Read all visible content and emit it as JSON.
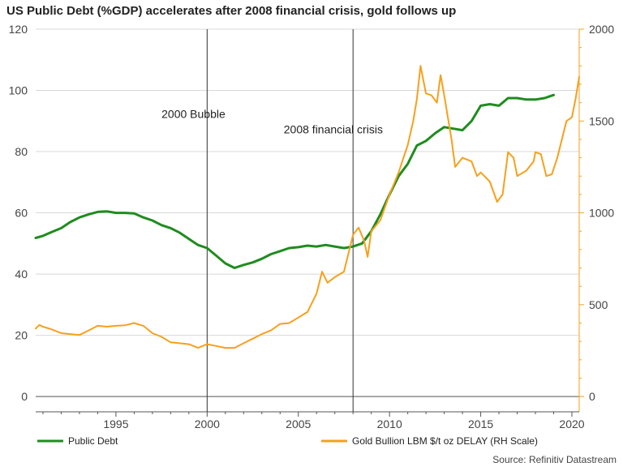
{
  "chart_data": {
    "type": "line",
    "title": "US Public Debt (%GDP) accelerates after 2008 financial crisis, gold follows up",
    "source": "Source: Refinitiv Datastream",
    "xlim": [
      1990.6,
      2020.4
    ],
    "x_ticks": [
      1995,
      2000,
      2005,
      2010,
      2015,
      2020
    ],
    "y_left": {
      "ylim": [
        -5,
        120
      ],
      "ticks": [
        0,
        20,
        40,
        60,
        80,
        100,
        120
      ]
    },
    "y_right": {
      "ylim": [
        -83.33,
        2000
      ],
      "ticks": [
        0,
        500,
        1000,
        1500,
        2000
      ]
    },
    "grid": true,
    "annotations": [
      {
        "label": "2000 Bubble",
        "x": 2000.0,
        "label_x": 1997.5,
        "label_y": 91
      },
      {
        "label": "2008 financial crisis",
        "x": 2008.0,
        "label_x": 2004.2,
        "label_y": 86
      }
    ],
    "series": [
      {
        "name": "Public Debt",
        "axis": "left",
        "color": "#1e8c1e",
        "points": [
          [
            1990.6,
            51.8
          ],
          [
            1991.0,
            52.5
          ],
          [
            1991.5,
            53.8
          ],
          [
            1992.0,
            55.0
          ],
          [
            1992.5,
            57.0
          ],
          [
            1993.0,
            58.5
          ],
          [
            1993.5,
            59.5
          ],
          [
            1994.0,
            60.3
          ],
          [
            1994.5,
            60.5
          ],
          [
            1995.0,
            60.0
          ],
          [
            1995.5,
            60.0
          ],
          [
            1996.0,
            59.8
          ],
          [
            1996.5,
            58.5
          ],
          [
            1997.0,
            57.5
          ],
          [
            1997.5,
            56.0
          ],
          [
            1998.0,
            55.0
          ],
          [
            1998.5,
            53.5
          ],
          [
            1999.0,
            51.5
          ],
          [
            1999.5,
            49.5
          ],
          [
            2000.0,
            48.5
          ],
          [
            2000.5,
            46.0
          ],
          [
            2001.0,
            43.5
          ],
          [
            2001.5,
            42.0
          ],
          [
            2002.0,
            43.0
          ],
          [
            2002.5,
            43.8
          ],
          [
            2003.0,
            45.0
          ],
          [
            2003.5,
            46.5
          ],
          [
            2004.0,
            47.5
          ],
          [
            2004.5,
            48.5
          ],
          [
            2005.0,
            48.8
          ],
          [
            2005.5,
            49.3
          ],
          [
            2006.0,
            49.0
          ],
          [
            2006.5,
            49.5
          ],
          [
            2007.0,
            49.0
          ],
          [
            2007.5,
            48.5
          ],
          [
            2008.0,
            49.0
          ],
          [
            2008.5,
            50.0
          ],
          [
            2009.0,
            54.0
          ],
          [
            2009.5,
            59.5
          ],
          [
            2010.0,
            66.0
          ],
          [
            2010.5,
            72.0
          ],
          [
            2011.0,
            76.0
          ],
          [
            2011.5,
            82.0
          ],
          [
            2012.0,
            83.5
          ],
          [
            2012.5,
            86.0
          ],
          [
            2013.0,
            88.0
          ],
          [
            2013.5,
            87.5
          ],
          [
            2014.0,
            87.0
          ],
          [
            2014.5,
            90.0
          ],
          [
            2015.0,
            95.0
          ],
          [
            2015.5,
            95.5
          ],
          [
            2016.0,
            95.0
          ],
          [
            2016.5,
            97.5
          ],
          [
            2017.0,
            97.5
          ],
          [
            2017.5,
            97.0
          ],
          [
            2018.0,
            97.0
          ],
          [
            2018.5,
            97.5
          ],
          [
            2019.0,
            98.5
          ]
        ]
      },
      {
        "name": "Gold Bullion LBM $/t oz DELAY (RH Scale)",
        "axis": "right",
        "color": "#f7a01c",
        "points": [
          [
            1990.6,
            370
          ],
          [
            1990.8,
            390
          ],
          [
            1991.0,
            380
          ],
          [
            1991.5,
            365
          ],
          [
            1992.0,
            345
          ],
          [
            1992.5,
            340
          ],
          [
            1993.0,
            335
          ],
          [
            1993.5,
            360
          ],
          [
            1994.0,
            385
          ],
          [
            1994.5,
            380
          ],
          [
            1995.0,
            385
          ],
          [
            1995.5,
            388
          ],
          [
            1996.0,
            400
          ],
          [
            1996.5,
            385
          ],
          [
            1997.0,
            345
          ],
          [
            1997.5,
            325
          ],
          [
            1998.0,
            295
          ],
          [
            1998.5,
            290
          ],
          [
            1999.0,
            285
          ],
          [
            1999.5,
            265
          ],
          [
            2000.0,
            285
          ],
          [
            2000.5,
            275
          ],
          [
            2001.0,
            265
          ],
          [
            2001.5,
            265
          ],
          [
            2002.0,
            290
          ],
          [
            2002.5,
            315
          ],
          [
            2003.0,
            340
          ],
          [
            2003.5,
            360
          ],
          [
            2004.0,
            395
          ],
          [
            2004.5,
            400
          ],
          [
            2005.0,
            430
          ],
          [
            2005.5,
            460
          ],
          [
            2006.0,
            560
          ],
          [
            2006.3,
            680
          ],
          [
            2006.6,
            620
          ],
          [
            2007.0,
            650
          ],
          [
            2007.5,
            680
          ],
          [
            2008.0,
            880
          ],
          [
            2008.3,
            920
          ],
          [
            2008.6,
            850
          ],
          [
            2008.8,
            760
          ],
          [
            2009.0,
            900
          ],
          [
            2009.5,
            960
          ],
          [
            2010.0,
            1100
          ],
          [
            2010.5,
            1220
          ],
          [
            2011.0,
            1370
          ],
          [
            2011.3,
            1500
          ],
          [
            2011.5,
            1620
          ],
          [
            2011.7,
            1800
          ],
          [
            2012.0,
            1650
          ],
          [
            2012.3,
            1640
          ],
          [
            2012.6,
            1600
          ],
          [
            2012.8,
            1750
          ],
          [
            2013.0,
            1640
          ],
          [
            2013.4,
            1400
          ],
          [
            2013.6,
            1250
          ],
          [
            2014.0,
            1300
          ],
          [
            2014.5,
            1280
          ],
          [
            2014.8,
            1200
          ],
          [
            2015.0,
            1220
          ],
          [
            2015.5,
            1170
          ],
          [
            2015.9,
            1060
          ],
          [
            2016.2,
            1100
          ],
          [
            2016.5,
            1330
          ],
          [
            2016.8,
            1300
          ],
          [
            2017.0,
            1200
          ],
          [
            2017.5,
            1230
          ],
          [
            2017.9,
            1280
          ],
          [
            2018.0,
            1330
          ],
          [
            2018.3,
            1320
          ],
          [
            2018.6,
            1200
          ],
          [
            2018.9,
            1210
          ],
          [
            2019.2,
            1300
          ],
          [
            2019.5,
            1420
          ],
          [
            2019.7,
            1500
          ],
          [
            2020.0,
            1520
          ],
          [
            2020.2,
            1620
          ],
          [
            2020.4,
            1740
          ]
        ]
      }
    ]
  }
}
